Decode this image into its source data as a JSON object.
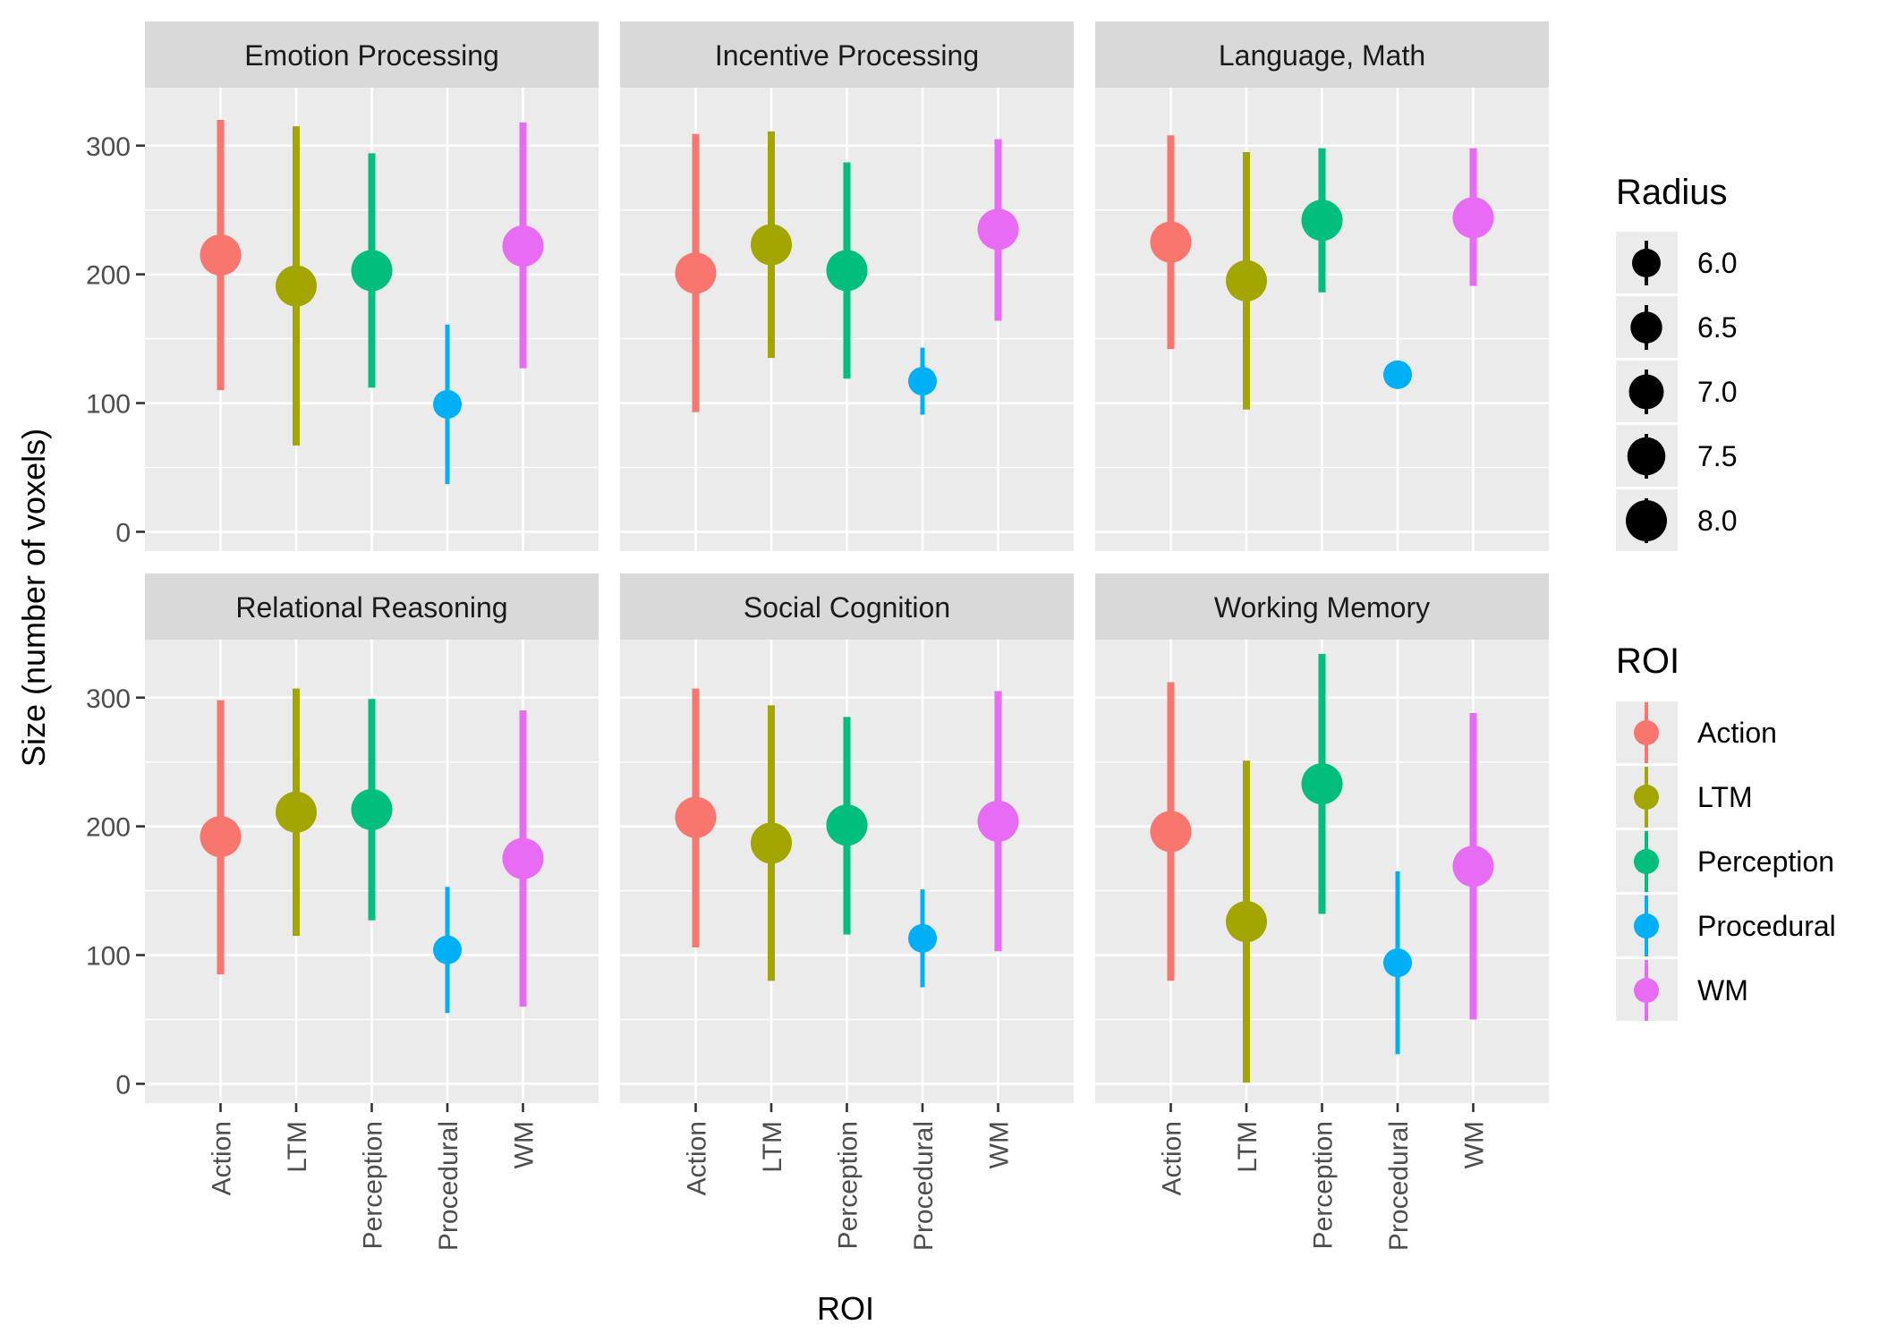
{
  "chart_data": {
    "type": "scatter",
    "subtype": "faceted point-range",
    "xlabel": "ROI",
    "ylabel": "Size (number of voxels)",
    "categories": [
      "Action",
      "LTM",
      "Perception",
      "Procedural",
      "WM"
    ],
    "ylim": [
      -15,
      345
    ],
    "y_ticks": [
      0,
      100,
      200,
      300
    ],
    "y_tick_labels": [
      "0",
      "100",
      "200",
      "300"
    ],
    "grid": true,
    "facet_layout": {
      "rows": 2,
      "cols": 3
    },
    "colors": {
      "Action": "#F8766D",
      "LTM": "#A3A500",
      "Perception": "#00BF7D",
      "Procedural": "#00B0F6",
      "WM": "#E76BF3"
    },
    "panels": [
      {
        "title": "Emotion Processing",
        "points": [
          {
            "roi": "Action",
            "y": 215,
            "low": 110,
            "high": 320,
            "radius": 8.0
          },
          {
            "roi": "LTM",
            "y": 191,
            "low": 67,
            "high": 315,
            "radius": 8.0
          },
          {
            "roi": "Perception",
            "y": 203,
            "low": 112,
            "high": 294,
            "radius": 8.0
          },
          {
            "roi": "Procedural",
            "y": 99,
            "low": 37,
            "high": 161,
            "radius": 6.0
          },
          {
            "roi": "WM",
            "y": 222,
            "low": 127,
            "high": 318,
            "radius": 8.0
          }
        ]
      },
      {
        "title": "Incentive Processing",
        "points": [
          {
            "roi": "Action",
            "y": 201,
            "low": 93,
            "high": 309,
            "radius": 8.0
          },
          {
            "roi": "LTM",
            "y": 223,
            "low": 135,
            "high": 311,
            "radius": 8.0
          },
          {
            "roi": "Perception",
            "y": 203,
            "low": 119,
            "high": 287,
            "radius": 8.0
          },
          {
            "roi": "Procedural",
            "y": 117,
            "low": 91,
            "high": 143,
            "radius": 6.0
          },
          {
            "roi": "WM",
            "y": 235,
            "low": 164,
            "high": 305,
            "radius": 8.0
          }
        ]
      },
      {
        "title": "Language, Math",
        "points": [
          {
            "roi": "Action",
            "y": 225,
            "low": 142,
            "high": 308,
            "radius": 8.0
          },
          {
            "roi": "LTM",
            "y": 195,
            "low": 95,
            "high": 295,
            "radius": 8.0
          },
          {
            "roi": "Perception",
            "y": 242,
            "low": 186,
            "high": 298,
            "radius": 8.0
          },
          {
            "roi": "Procedural",
            "y": 122,
            "low": 122,
            "high": 122,
            "radius": 6.0
          },
          {
            "roi": "WM",
            "y": 244,
            "low": 191,
            "high": 298,
            "radius": 8.0
          }
        ]
      },
      {
        "title": "Relational Reasoning",
        "points": [
          {
            "roi": "Action",
            "y": 192,
            "low": 85,
            "high": 298,
            "radius": 8.0
          },
          {
            "roi": "LTM",
            "y": 211,
            "low": 115,
            "high": 307,
            "radius": 8.0
          },
          {
            "roi": "Perception",
            "y": 213,
            "low": 127,
            "high": 299,
            "radius": 8.0
          },
          {
            "roi": "Procedural",
            "y": 104,
            "low": 55,
            "high": 153,
            "radius": 6.0
          },
          {
            "roi": "WM",
            "y": 175,
            "low": 60,
            "high": 290,
            "radius": 8.0
          }
        ]
      },
      {
        "title": "Social Cognition",
        "points": [
          {
            "roi": "Action",
            "y": 207,
            "low": 106,
            "high": 307,
            "radius": 8.0
          },
          {
            "roi": "LTM",
            "y": 187,
            "low": 80,
            "high": 294,
            "radius": 8.0
          },
          {
            "roi": "Perception",
            "y": 201,
            "low": 116,
            "high": 285,
            "radius": 8.0
          },
          {
            "roi": "Procedural",
            "y": 113,
            "low": 75,
            "high": 151,
            "radius": 6.0
          },
          {
            "roi": "WM",
            "y": 204,
            "low": 103,
            "high": 305,
            "radius": 8.0
          }
        ]
      },
      {
        "title": "Working Memory",
        "points": [
          {
            "roi": "Action",
            "y": 196,
            "low": 80,
            "high": 312,
            "radius": 8.0
          },
          {
            "roi": "LTM",
            "y": 126,
            "low": 1,
            "high": 251,
            "radius": 8.0
          },
          {
            "roi": "Perception",
            "y": 233,
            "low": 132,
            "high": 334,
            "radius": 8.0
          },
          {
            "roi": "Procedural",
            "y": 94,
            "low": 23,
            "high": 165,
            "radius": 6.0
          },
          {
            "roi": "WM",
            "y": 169,
            "low": 50,
            "high": 288,
            "radius": 8.0
          }
        ]
      }
    ],
    "legends": {
      "radius": {
        "title": "Radius",
        "entries": [
          "6.0",
          "6.5",
          "7.0",
          "7.5",
          "8.0"
        ],
        "values": [
          6.0,
          6.5,
          7.0,
          7.5,
          8.0
        ]
      },
      "roi": {
        "title": "ROI",
        "entries": [
          "Action",
          "LTM",
          "Perception",
          "Procedural",
          "WM"
        ]
      }
    },
    "legend_position": "right"
  }
}
